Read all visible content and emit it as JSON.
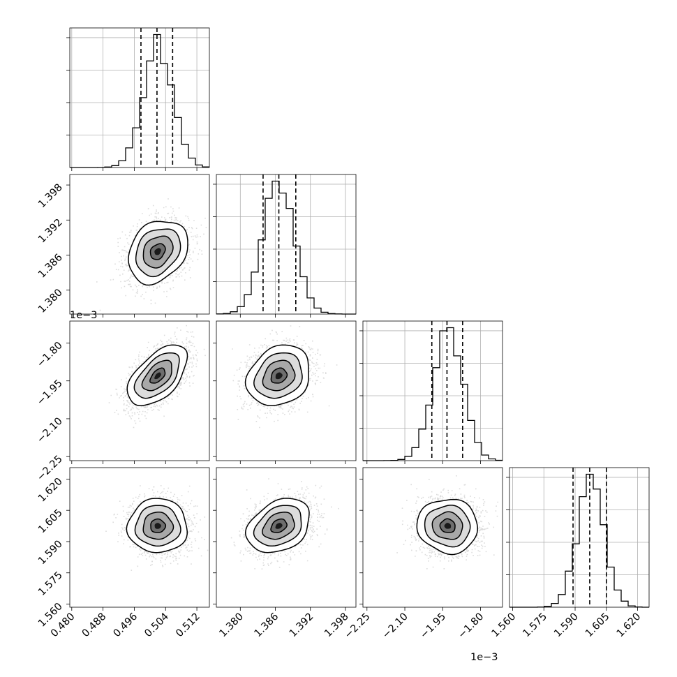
{
  "chart_data": {
    "type": "corner",
    "n_params": 4,
    "offset_text_left": "1e−3",
    "offset_text_bottom": "1e−3",
    "params": [
      {
        "name": "",
        "range": [
          0.4795,
          0.5152
        ],
        "ticks": [
          0.48,
          0.488,
          0.496,
          0.504,
          0.512
        ],
        "tick_labels": [
          "0.480",
          "0.488",
          "0.496",
          "0.504",
          "0.512"
        ],
        "mean": 0.502,
        "sd": 0.0038,
        "quantiles": [
          0.4977,
          0.5018,
          0.5058
        ]
      },
      {
        "name": "",
        "range": [
          1.3759,
          1.3998
        ],
        "ticks": [
          1.38,
          1.386,
          1.392,
          1.398
        ],
        "tick_labels": [
          "1.380",
          "1.386",
          "1.392",
          "1.398"
        ],
        "mean": 1.3866,
        "sd": 0.0027,
        "quantiles": [
          1.3839,
          1.3866,
          1.3895
        ]
      },
      {
        "name": "",
        "range": [
          -2.266,
          -1.713
        ],
        "ticks": [
          -2.25,
          -2.1,
          -1.95,
          -1.8
        ],
        "tick_labels": [
          "−2.25",
          "−2.10",
          "−1.95",
          "−1.80"
        ],
        "mean": -1.93,
        "sd": 0.06,
        "quantiles": [
          -1.993,
          -1.933,
          -1.871
        ]
      },
      {
        "name": "",
        "range": [
          1.5585,
          1.6255
        ],
        "ticks": [
          1.56,
          1.575,
          1.59,
          1.605,
          1.62
        ],
        "tick_labels": [
          "1.560",
          "1.575",
          "1.590",
          "1.605",
          "1.620"
        ],
        "mean": 1.5975,
        "sd": 0.0065,
        "quantiles": [
          1.589,
          1.597,
          1.605
        ]
      }
    ],
    "correlations": {
      "1-0": 0.25,
      "2-0": 0.55,
      "2-1": 0.2,
      "3-0": 0.0,
      "3-1": 0.3,
      "3-2": -0.05
    },
    "contour_levels_sigma": [
      0.5,
      1.0,
      1.5,
      2.0
    ],
    "histogram_bins": 20,
    "samples_per_panel": 2200,
    "grid": true
  }
}
